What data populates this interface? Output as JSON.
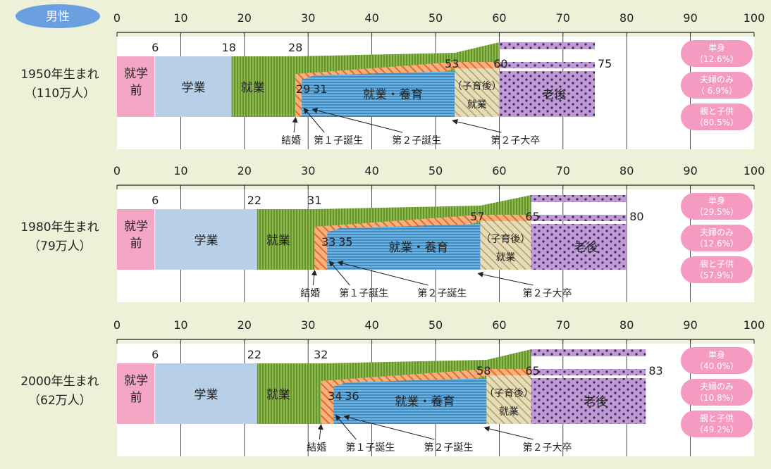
{
  "header": {
    "badge": "男性"
  },
  "chart_data": {
    "type": "timeline-bar",
    "xlim": [
      0,
      100
    ],
    "x_ticks": [
      "0",
      "10",
      "20",
      "30",
      "40",
      "50",
      "60",
      "70",
      "80",
      "90",
      "100"
    ],
    "rows": [
      {
        "title": "1950年生まれ",
        "subtitle": "（110万人）",
        "marks": {
          "school_end": 6,
          "work_start": 18,
          "marriage": 28,
          "first_child": 29,
          "second_child": 31,
          "child_grad": 53,
          "retire": 60,
          "death": 75
        },
        "mark_labels": {
          "school_end": "6",
          "work_start": "18",
          "marriage": "28",
          "first_child": "29",
          "second_child": "31",
          "child_grad": "53",
          "retire": "60",
          "death": "75"
        },
        "stages": {
          "preschool": "就学前",
          "study": "学業",
          "work": "就業",
          "work_parent": "就業・養育",
          "post_child": "（子育後）",
          "post_child_work": "就業",
          "old_age": "老後"
        },
        "events": [
          "結婚",
          "第１子誕生",
          "第２子誕生",
          "第２子大卒"
        ],
        "households": [
          {
            "label": "単身",
            "value": "（12.6%）"
          },
          {
            "label": "夫婦のみ",
            "value": "（ 6.9%）"
          },
          {
            "label": "親と子供",
            "value": "（80.5%）"
          }
        ]
      },
      {
        "title": "1980年生まれ",
        "subtitle": "（79万人）",
        "marks": {
          "school_end": 6,
          "work_start": 22,
          "marriage": 31,
          "first_child": 33,
          "second_child": 35,
          "child_grad": 57,
          "retire": 65,
          "death": 80
        },
        "mark_labels": {
          "school_end": "6",
          "work_start": "22",
          "marriage": "31",
          "first_child": "33",
          "second_child": "35",
          "child_grad": "57",
          "retire": "65",
          "death": "80"
        },
        "stages": {
          "preschool": "就学前",
          "study": "学業",
          "work": "就業",
          "work_parent": "就業・養育",
          "post_child": "（子育後）",
          "post_child_work": "就業",
          "old_age": "老後"
        },
        "events": [
          "結婚",
          "第１子誕生",
          "第２子誕生",
          "第２子大卒"
        ],
        "households": [
          {
            "label": "単身",
            "value": "（29.5%）"
          },
          {
            "label": "夫婦のみ",
            "value": "（12.6%）"
          },
          {
            "label": "親と子供",
            "value": "（57.9%）"
          }
        ]
      },
      {
        "title": "2000年生まれ",
        "subtitle": "（62万人）",
        "marks": {
          "school_end": 6,
          "work_start": 22,
          "marriage": 32,
          "first_child": 34,
          "second_child": 36,
          "child_grad": 58,
          "retire": 65,
          "death": 83
        },
        "mark_labels": {
          "school_end": "6",
          "work_start": "22",
          "marriage": "32",
          "first_child": "34",
          "second_child": "36",
          "child_grad": "58",
          "retire": "65",
          "death": "83"
        },
        "stages": {
          "preschool": "就学前",
          "study": "学業",
          "work": "就業",
          "work_parent": "就業・養育",
          "post_child": "（子育後）",
          "post_child_work": "就業",
          "old_age": "老後"
        },
        "events": [
          "結婚",
          "第１子誕生",
          "第２子誕生",
          "第２子大卒"
        ],
        "households": [
          {
            "label": "単身",
            "value": "（40.0%）"
          },
          {
            "label": "夫婦のみ",
            "value": "（10.8%）"
          },
          {
            "label": "親と子供",
            "value": "（49.2%）"
          }
        ]
      }
    ],
    "colors": {
      "preschool": "#f4a6c4",
      "study": "#b8cfe8",
      "work": "#8dbb4a",
      "marriage": "#f08a4a",
      "parent": "#5aaee0",
      "post_child": "#c8b88a",
      "old_age": "#b087cc",
      "household_pill": "#f59ac0",
      "badge": "#6a9fe0"
    }
  }
}
